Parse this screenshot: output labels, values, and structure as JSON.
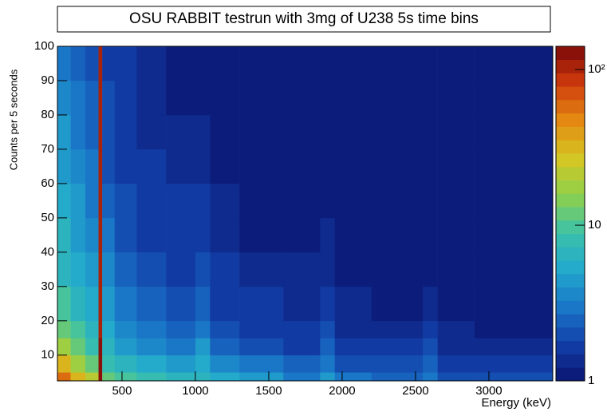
{
  "chart_data": {
    "type": "heatmap",
    "title": "OSU RABBIT testrun with 3mg of U238 5s time bins",
    "x_label": "Energy (keV)",
    "y_label": "Counts per 5 seconds",
    "x_edges": [
      60,
      150,
      250,
      340,
      365,
      450,
      600,
      800,
      1000,
      1100,
      1300,
      1600,
      1850,
      1950,
      2200,
      2550,
      2650,
      2900,
      3200,
      3435
    ],
    "y_edges": [
      2.5,
      5,
      10,
      15,
      20,
      30,
      40,
      50,
      60,
      70,
      80,
      90,
      100
    ],
    "z": [
      [
        60,
        35,
        20,
        130,
        12,
        10,
        8,
        6,
        7,
        5,
        4,
        3,
        4,
        3,
        2.5,
        3,
        2,
        2,
        2
      ],
      [
        30,
        18,
        12,
        125,
        8,
        6,
        5,
        4,
        5,
        3.5,
        3,
        2.5,
        3,
        2,
        2,
        2.5,
        1.8,
        1.6,
        1.5
      ],
      [
        18,
        12,
        8,
        120,
        6,
        4.5,
        3.5,
        3,
        4,
        2.5,
        2,
        1.8,
        2.5,
        1.6,
        1.5,
        2,
        1.4,
        1.3,
        1.3
      ],
      [
        12,
        9,
        6,
        115,
        5,
        3.5,
        3,
        2.5,
        3,
        2,
        1.7,
        1.5,
        2,
        1.4,
        1.3,
        1.6,
        1.3,
        1.2,
        1.2
      ],
      [
        9,
        7,
        5,
        110,
        4,
        3,
        2.5,
        2,
        2.5,
        1.8,
        1.5,
        1.4,
        1.7,
        1.3,
        1.2,
        1.4,
        1.2,
        1.1,
        1.1
      ],
      [
        7,
        5,
        4,
        105,
        3.5,
        2.5,
        2,
        1.8,
        2,
        1.5,
        1.3,
        1.3,
        1.4,
        1.2,
        1.1,
        1.2,
        1.1,
        1,
        1
      ],
      [
        6,
        4.5,
        3.5,
        100,
        3,
        2.2,
        1.8,
        1.6,
        1.7,
        1.4,
        1.2,
        1.2,
        1.3,
        1.1,
        1,
        1.1,
        1,
        1,
        1
      ],
      [
        5,
        4,
        3,
        100,
        2.5,
        2,
        1.6,
        1.5,
        1.5,
        1.3,
        1.2,
        1.1,
        1.2,
        1,
        1,
        1,
        1,
        1,
        1
      ],
      [
        4.5,
        3.5,
        2.8,
        100,
        2.2,
        1.8,
        1.5,
        1.4,
        1.4,
        1.2,
        1.1,
        1.1,
        1.1,
        1,
        1,
        1,
        1,
        1,
        1
      ],
      [
        4,
        3,
        2.5,
        100,
        2,
        1.7,
        1.4,
        1.3,
        1.3,
        1.2,
        1.1,
        1,
        1,
        1,
        1,
        1,
        1,
        1,
        1
      ],
      [
        3.5,
        2.8,
        2.3,
        100,
        1.9,
        1.6,
        1.3,
        1.2,
        1.2,
        1.1,
        1,
        1,
        1,
        1,
        1,
        1,
        1,
        1,
        1
      ],
      [
        3,
        2.5,
        2.2,
        100,
        1.8,
        1.5,
        1.3,
        1.2,
        1.2,
        1.1,
        1,
        1,
        1,
        1,
        1,
        1,
        1,
        1,
        1
      ]
    ],
    "xlim": [
      60,
      3435
    ],
    "ylim": [
      2.5,
      100
    ],
    "zlim": [
      1,
      141
    ],
    "xticks": [
      500,
      1000,
      1500,
      2000,
      2500,
      3000
    ],
    "yticks": [
      10,
      20,
      30,
      40,
      50,
      60,
      70,
      80,
      90,
      100
    ],
    "zticks": [
      1,
      10,
      {
        "value": 100,
        "label": "10²"
      }
    ],
    "z_log": true,
    "palette": [
      "#0b1470",
      "#123fa8",
      "#1a78c8",
      "#22a8cc",
      "#3cc2a8",
      "#8ed04a",
      "#d6c622",
      "#e48a12",
      "#d03a0c",
      "#7a0808"
    ]
  }
}
